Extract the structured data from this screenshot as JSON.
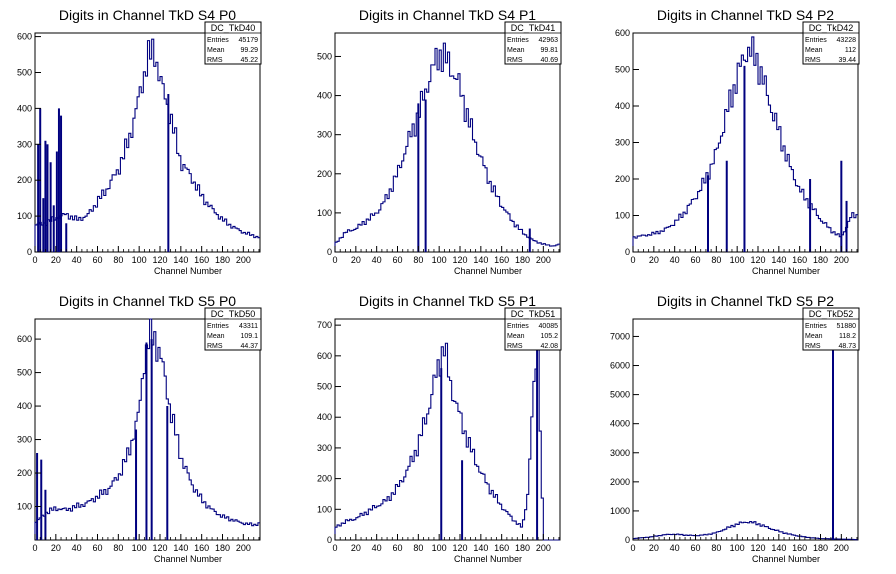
{
  "canvas": {
    "background": "#ffffff",
    "frame_color": "#000000",
    "hist_color": "#00007f"
  },
  "chart_data": [
    {
      "type": "histogram",
      "title": "Digits in Channel TkD S4 P0",
      "xlabel": "Channel Number",
      "xlim": [
        0,
        216
      ],
      "ylim": [
        0,
        610
      ],
      "xticks": [
        0,
        20,
        40,
        60,
        80,
        100,
        120,
        140,
        160,
        180,
        200
      ],
      "yticks": [
        0,
        100,
        200,
        300,
        400,
        500,
        600
      ],
      "stats": {
        "name": "DC_TkD40",
        "entries": "45179",
        "mean": "99.29",
        "rms": "45.22"
      },
      "envelope": {
        "x": [
          0,
          10,
          20,
          30,
          40,
          50,
          60,
          70,
          80,
          90,
          100,
          108,
          115,
          120,
          130,
          140,
          150,
          160,
          170,
          180,
          190,
          200,
          210,
          216
        ],
        "y": [
          75,
          80,
          95,
          105,
          90,
          100,
          140,
          180,
          230,
          310,
          430,
          540,
          560,
          480,
          380,
          250,
          210,
          155,
          120,
          90,
          70,
          55,
          45,
          40
        ]
      },
      "spikes": [
        [
          3,
          300
        ],
        [
          5,
          400
        ],
        [
          8,
          150
        ],
        [
          10,
          310
        ],
        [
          12,
          300
        ],
        [
          15,
          250
        ],
        [
          18,
          130
        ],
        [
          21,
          280
        ],
        [
          23,
          400
        ],
        [
          25,
          380
        ],
        [
          28,
          0
        ],
        [
          30,
          80
        ],
        [
          127,
          0
        ],
        [
          128,
          440
        ]
      ]
    },
    {
      "type": "histogram",
      "title": "Digits in Channel TkD S4 P1",
      "xlabel": "Channel Number",
      "xlim": [
        0,
        216
      ],
      "ylim": [
        0,
        560
      ],
      "xticks": [
        0,
        20,
        40,
        60,
        80,
        100,
        120,
        140,
        160,
        180,
        200
      ],
      "yticks": [
        0,
        100,
        200,
        300,
        400,
        500
      ],
      "stats": {
        "name": "DC_TkD41",
        "entries": "42963",
        "mean": "99.81",
        "rms": "40.69"
      },
      "envelope": {
        "x": [
          0,
          10,
          20,
          30,
          40,
          50,
          60,
          70,
          80,
          90,
          100,
          110,
          120,
          130,
          140,
          150,
          160,
          170,
          180,
          190,
          200,
          210,
          216
        ],
        "y": [
          20,
          50,
          60,
          80,
          100,
          140,
          200,
          280,
          350,
          440,
          510,
          480,
          420,
          320,
          240,
          170,
          120,
          80,
          50,
          30,
          20,
          15,
          20
        ]
      },
      "spikes": [
        [
          78,
          0
        ],
        [
          80,
          380
        ],
        [
          85,
          0
        ],
        [
          87,
          390
        ],
        [
          185,
          0
        ],
        [
          187,
          60
        ]
      ]
    },
    {
      "type": "histogram",
      "title": "Digits in Channel TkD S4 P2",
      "xlabel": "Channel Number",
      "xlim": [
        0,
        216
      ],
      "ylim": [
        0,
        600
      ],
      "xticks": [
        0,
        20,
        40,
        60,
        80,
        100,
        120,
        140,
        160,
        180,
        200
      ],
      "yticks": [
        0,
        100,
        200,
        300,
        400,
        500,
        600
      ],
      "stats": {
        "name": "DC_TkD42",
        "entries": "43228",
        "mean": "112",
        "rms": "39.44"
      },
      "envelope": {
        "x": [
          0,
          10,
          20,
          30,
          40,
          50,
          60,
          70,
          80,
          90,
          100,
          110,
          120,
          130,
          140,
          150,
          160,
          170,
          180,
          190,
          200,
          205,
          210
        ],
        "y": [
          40,
          45,
          50,
          60,
          80,
          110,
          150,
          200,
          270,
          380,
          480,
          560,
          520,
          420,
          330,
          240,
          170,
          130,
          90,
          60,
          40,
          70,
          100
        ]
      },
      "spikes": [
        [
          70,
          0
        ],
        [
          72,
          210
        ],
        [
          88,
          0
        ],
        [
          90,
          250
        ],
        [
          105,
          0
        ],
        [
          107,
          510
        ],
        [
          168,
          0
        ],
        [
          170,
          200
        ],
        [
          198,
          0
        ],
        [
          200,
          250
        ],
        [
          205,
          140
        ]
      ]
    },
    {
      "type": "histogram",
      "title": "Digits in Channel TkD S5 P0",
      "xlabel": "Channel Number",
      "xlim": [
        0,
        216
      ],
      "ylim": [
        0,
        660
      ],
      "xticks": [
        0,
        20,
        40,
        60,
        80,
        100,
        120,
        140,
        160,
        180,
        200
      ],
      "yticks": [
        100,
        200,
        300,
        400,
        500,
        600
      ],
      "stats": {
        "name": "DC_TkD50",
        "entries": "43311",
        "mean": "109.1",
        "rms": "44.37"
      },
      "envelope": {
        "x": [
          0,
          10,
          20,
          30,
          40,
          50,
          60,
          70,
          80,
          90,
          100,
          105,
          110,
          115,
          120,
          130,
          140,
          150,
          160,
          170,
          180,
          190,
          200,
          210,
          216
        ],
        "y": [
          50,
          80,
          95,
          90,
          100,
          110,
          130,
          150,
          190,
          260,
          380,
          540,
          610,
          600,
          560,
          390,
          250,
          170,
          120,
          90,
          70,
          60,
          50,
          45,
          50
        ]
      },
      "spikes": [
        [
          2,
          260
        ],
        [
          6,
          240
        ],
        [
          10,
          150
        ],
        [
          95,
          0
        ],
        [
          97,
          330
        ],
        [
          105,
          0
        ],
        [
          107,
          590
        ],
        [
          110,
          0
        ],
        [
          112,
          600
        ],
        [
          125,
          0
        ],
        [
          127,
          400
        ]
      ]
    },
    {
      "type": "histogram",
      "title": "Digits in Channel TkD S5 P1",
      "xlabel": "Channel Number",
      "xlim": [
        0,
        216
      ],
      "ylim": [
        0,
        720
      ],
      "xticks": [
        0,
        20,
        40,
        60,
        80,
        100,
        120,
        140,
        160,
        180,
        200
      ],
      "yticks": [
        0,
        100,
        200,
        300,
        400,
        500,
        600,
        700
      ],
      "stats": {
        "name": "DC_TkD51",
        "entries": "40085",
        "mean": "105.2",
        "rms": "42.08"
      },
      "envelope": {
        "x": [
          0,
          10,
          20,
          30,
          40,
          50,
          60,
          70,
          80,
          90,
          100,
          105,
          110,
          120,
          130,
          140,
          150,
          160,
          170,
          180,
          185,
          190,
          195,
          200
        ],
        "y": [
          40,
          60,
          70,
          90,
          110,
          130,
          170,
          230,
          310,
          430,
          580,
          630,
          520,
          400,
          300,
          220,
          160,
          110,
          70,
          40,
          150,
          450,
          650,
          0
        ]
      },
      "spikes": [
        [
          100,
          0
        ],
        [
          102,
          560
        ],
        [
          120,
          0
        ],
        [
          122,
          260
        ],
        [
          192,
          0
        ],
        [
          194,
          680
        ]
      ]
    },
    {
      "type": "histogram",
      "title": "Digits in Channel TkD S5 P2",
      "xlabel": "Channel Number",
      "xlim": [
        0,
        216
      ],
      "ylim": [
        0,
        7600
      ],
      "xticks": [
        0,
        20,
        40,
        60,
        80,
        100,
        120,
        140,
        160,
        180,
        200
      ],
      "yticks": [
        0,
        1000,
        2000,
        3000,
        4000,
        5000,
        6000,
        7000
      ],
      "stats": {
        "name": "DC_TkD52",
        "entries": "51880",
        "mean": "118.2",
        "rms": "48.73"
      },
      "envelope": {
        "x": [
          0,
          10,
          20,
          30,
          40,
          50,
          60,
          70,
          80,
          90,
          100,
          110,
          120,
          130,
          140,
          150,
          160,
          170,
          180,
          190,
          200,
          210,
          216
        ],
        "y": [
          50,
          80,
          120,
          180,
          200,
          170,
          150,
          180,
          250,
          400,
          550,
          630,
          560,
          420,
          300,
          200,
          130,
          80,
          50,
          40,
          30,
          20,
          10
        ]
      },
      "spikes": [
        [
          190,
          0
        ],
        [
          192,
          7150
        ],
        [
          193,
          0
        ]
      ]
    }
  ]
}
